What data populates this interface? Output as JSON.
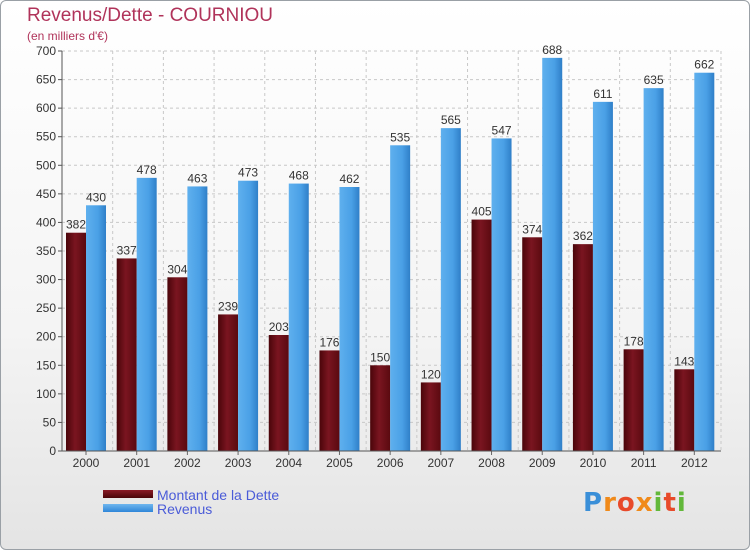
{
  "title": "Revenus/Dette - COURNIOU",
  "subtitle": "(en milliers d'€)",
  "colors": {
    "dette": "#6b0f17",
    "revenus": "#4ea6ea",
    "title": "#b0335a",
    "legend_text": "#4a5bd8"
  },
  "logo": {
    "text": "Proxiti"
  },
  "chart_data": {
    "type": "bar",
    "categories": [
      "2000",
      "2001",
      "2002",
      "2003",
      "2004",
      "2005",
      "2006",
      "2007",
      "2008",
      "2009",
      "2010",
      "2011",
      "2012"
    ],
    "series": [
      {
        "name": "Montant de la Dette",
        "values": [
          382,
          337,
          304,
          239,
          203,
          176,
          150,
          120,
          405,
          374,
          362,
          178,
          143
        ]
      },
      {
        "name": "Revenus",
        "values": [
          430,
          478,
          463,
          473,
          468,
          462,
          535,
          565,
          547,
          688,
          611,
          635,
          662
        ]
      }
    ],
    "ylim": [
      0,
      700
    ],
    "yticks": [
      0,
      50,
      100,
      150,
      200,
      250,
      300,
      350,
      400,
      450,
      500,
      550,
      600,
      650,
      700
    ],
    "grid": true,
    "legend_position": "bottom-left"
  }
}
